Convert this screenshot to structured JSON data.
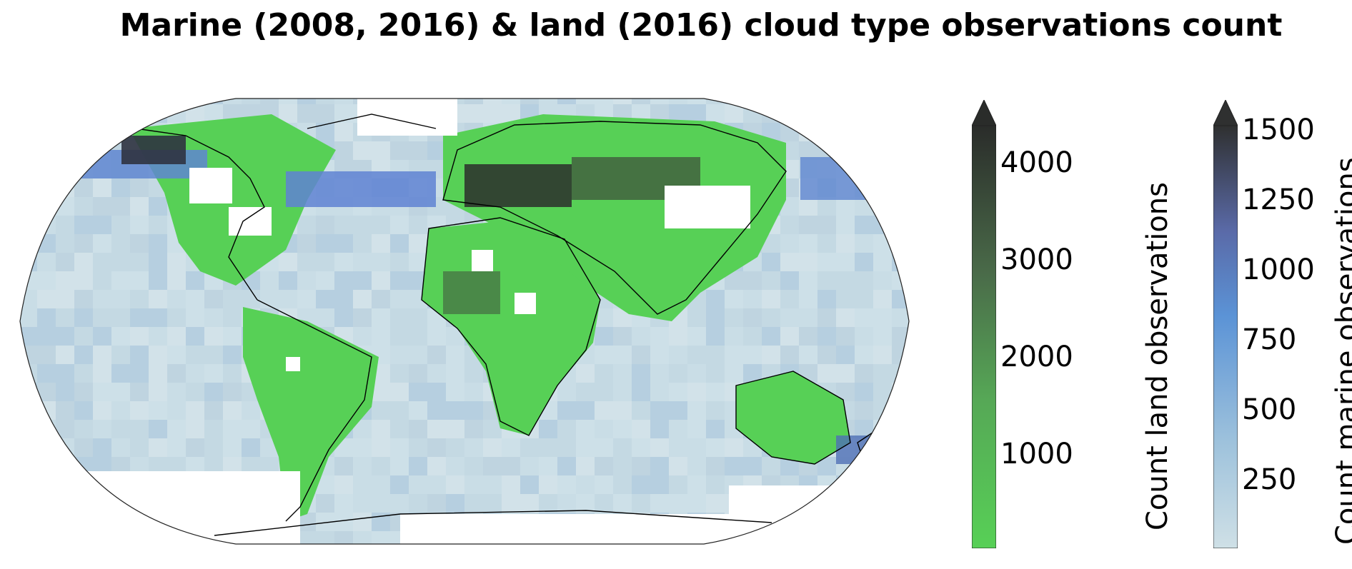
{
  "title": "Marine (2008, 2016) & land (2016) cloud type observations count",
  "map": {
    "projection": "Robinson (global)",
    "description_layers": [
      "marine observation counts (blue scale)",
      "land observation counts (green scale)",
      "coastlines"
    ],
    "ocean_low_color": "#c9dde6",
    "ocean_mid_color": "#5f97d4",
    "ocean_high_color": "#3a3d5a",
    "land_low_color": "#57d056",
    "land_high_color": "#2a2c2a",
    "no_data_color": "#ffffff",
    "coastline_color": "#000000"
  },
  "colorbars": {
    "land": {
      "label": "Count land observations",
      "ticks": [
        "1000",
        "2000",
        "3000",
        "4000"
      ],
      "range": [
        0,
        4400
      ],
      "extend": "max",
      "color_low": "#57d056",
      "color_high": "#2a2c2a"
    },
    "marine": {
      "label": "Count marine observations",
      "ticks": [
        "250",
        "500",
        "750",
        "1000",
        "1250",
        "1500"
      ],
      "range": [
        50,
        1550
      ],
      "extend": "max",
      "color_low": "#cfe0e6",
      "color_mid": "#5b93d6",
      "color_high": "#2f3030"
    }
  }
}
